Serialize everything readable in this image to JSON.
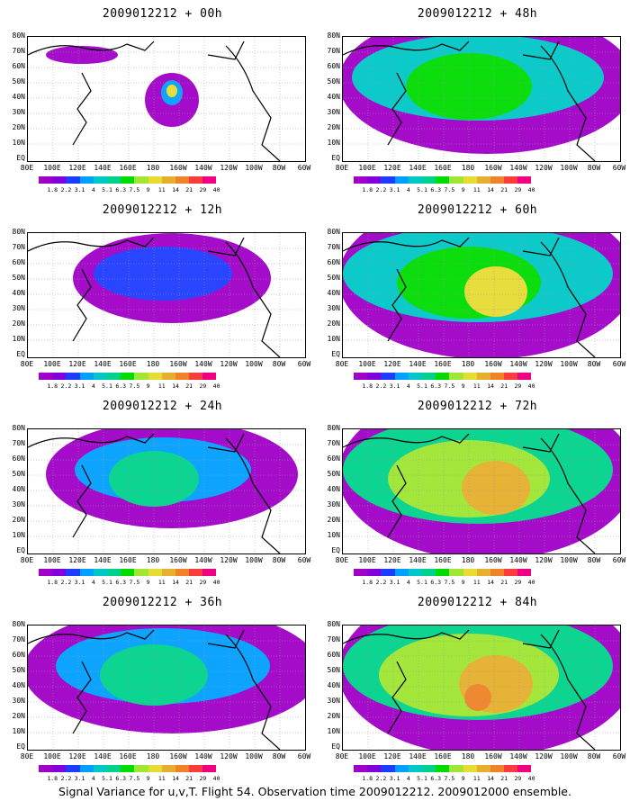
{
  "caption": "Signal Variance for u,v,T. Flight 54. Observation time 2009012212. 2009012000 ensemble.",
  "panels": [
    {
      "title": "2009012212 + 00h",
      "spread": 0
    },
    {
      "title": "2009012212 + 48h",
      "spread": 4
    },
    {
      "title": "2009012212 + 12h",
      "spread": 1
    },
    {
      "title": "2009012212 + 60h",
      "spread": 5
    },
    {
      "title": "2009012212 + 24h",
      "spread": 2
    },
    {
      "title": "2009012212 + 72h",
      "spread": 6
    },
    {
      "title": "2009012212 + 36h",
      "spread": 3
    },
    {
      "title": "2009012212 + 84h",
      "spread": 7
    }
  ],
  "lat_labels": [
    "80N",
    "70N",
    "60N",
    "50N",
    "40N",
    "30N",
    "20N",
    "10N",
    "EQ"
  ],
  "lon_labels": [
    "80E",
    "100E",
    "120E",
    "140E",
    "160E",
    "180",
    "160W",
    "140W",
    "120W",
    "100W",
    "80W",
    "60W"
  ],
  "colorbar": {
    "labels": [
      "1.8",
      "2.2",
      "3.1",
      "4",
      "5.1",
      "6.3",
      "7.5",
      "9",
      "11",
      "14",
      "21",
      "29",
      "40"
    ],
    "colors": [
      "#a000c8",
      "#8200dc",
      "#1e3cff",
      "#00a0ff",
      "#00c8c8",
      "#00d28c",
      "#00dc00",
      "#a0e632",
      "#e6dc32",
      "#e6af2d",
      "#f08228",
      "#fa3c3c",
      "#f00082"
    ]
  }
}
